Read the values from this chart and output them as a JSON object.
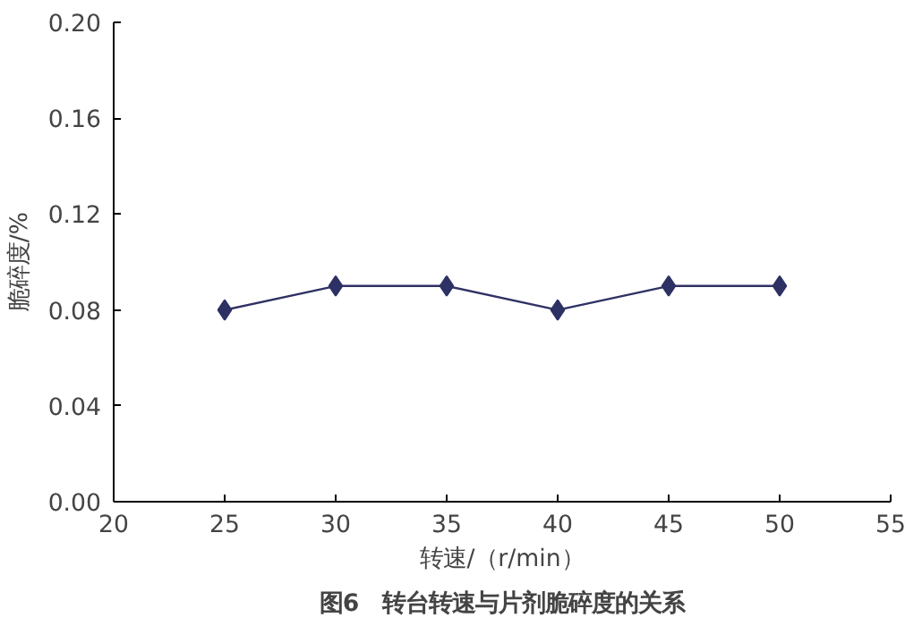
{
  "chart_data": {
    "type": "line",
    "title": "图6　转台转速与片剂脆碎度的关系",
    "xlabel": "转速/（r/min）",
    "ylabel": "脆碎度/%",
    "x": [
      25,
      30,
      35,
      40,
      45,
      50
    ],
    "series": [
      {
        "color": "#2e3163",
        "values": [
          0.08,
          0.09,
          0.09,
          0.08,
          0.09,
          0.09
        ]
      }
    ],
    "xlim": [
      20,
      55
    ],
    "xticks": [
      20,
      25,
      30,
      35,
      40,
      45,
      50,
      55
    ],
    "ylim": [
      0,
      0.2
    ],
    "yticks": [
      {
        "value": 0,
        "label": "0.00"
      },
      {
        "value": 0.04,
        "label": "0.04"
      },
      {
        "value": 0.08,
        "label": "0.08"
      },
      {
        "value": 0.12,
        "label": "0.12"
      },
      {
        "value": 0.16,
        "label": "0.16"
      },
      {
        "value": 0.2,
        "label": "0.20"
      }
    ],
    "grid": false,
    "marker": "diamond",
    "line_style": "solid"
  }
}
